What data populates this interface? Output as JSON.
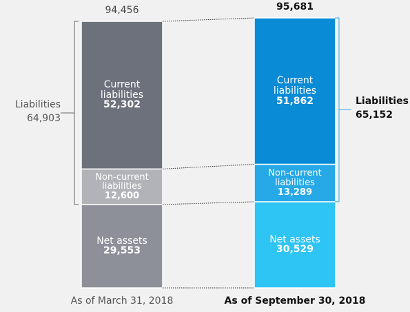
{
  "chart_data": {
    "type": "stacked_bar",
    "categories": [
      "As of March 31, 2018",
      "As of September 30, 2018"
    ],
    "series": [
      {
        "name": "Net assets",
        "colors": [
          "#8e9099",
          "#2ec4f3"
        ],
        "values": [
          29553,
          30529
        ],
        "value_labels": [
          "29,553",
          "30,529"
        ]
      },
      {
        "name": "Non-current liabilities",
        "colors": [
          "#b1b3b9",
          "#26a9e6"
        ],
        "values": [
          12600,
          13289
        ],
        "value_labels": [
          "12,600",
          "13,289"
        ]
      },
      {
        "name": "Current liabilities",
        "colors": [
          "#6d717c",
          "#0a8bd6"
        ],
        "values": [
          52302,
          51862
        ],
        "value_labels": [
          "52,302",
          "51,862"
        ]
      }
    ],
    "totals": [
      94456,
      95681
    ],
    "total_labels": [
      "94,456",
      "95,681"
    ],
    "liabilities": {
      "label": "Liabilities",
      "values": [
        64903,
        65152
      ],
      "value_labels": [
        "64,903",
        "65,152"
      ]
    }
  }
}
